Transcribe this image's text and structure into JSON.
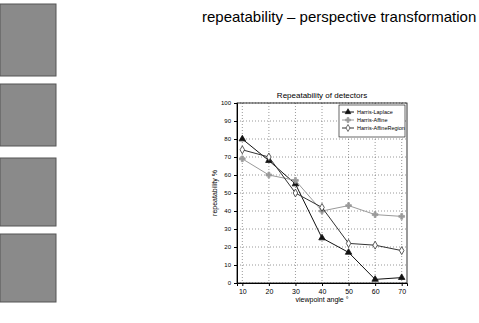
{
  "slide_title": "repeatability – perspective transformation",
  "chart_data": {
    "type": "line",
    "title": "Repeatability of detectors",
    "x_label": "viewpoint angle °",
    "y_label": "repeatability %",
    "x": [
      10,
      20,
      30,
      40,
      50,
      60,
      70
    ],
    "series": [
      {
        "name": "Harris-Laplace",
        "color": "#111111",
        "marker": "triangle",
        "values": [
          80,
          68,
          55,
          25,
          17,
          2,
          3
        ]
      },
      {
        "name": "Harris-Affine",
        "color": "#9a9a9a",
        "marker": "plus",
        "values": [
          69,
          60,
          57,
          40,
          43,
          38,
          37
        ]
      },
      {
        "name": "Harris-AffineRegion",
        "color": "#333333",
        "marker": "diamond",
        "values": [
          74,
          70,
          50,
          42,
          22,
          21,
          18
        ]
      }
    ],
    "xlim": [
      8,
      72
    ],
    "xticks": [
      10,
      20,
      30,
      40,
      50,
      60,
      70
    ],
    "ylim": [
      0,
      100
    ],
    "yticks": [
      0,
      10,
      20,
      30,
      40,
      50,
      60,
      70,
      80,
      90,
      100
    ],
    "grid": true,
    "legend": "upper right"
  }
}
